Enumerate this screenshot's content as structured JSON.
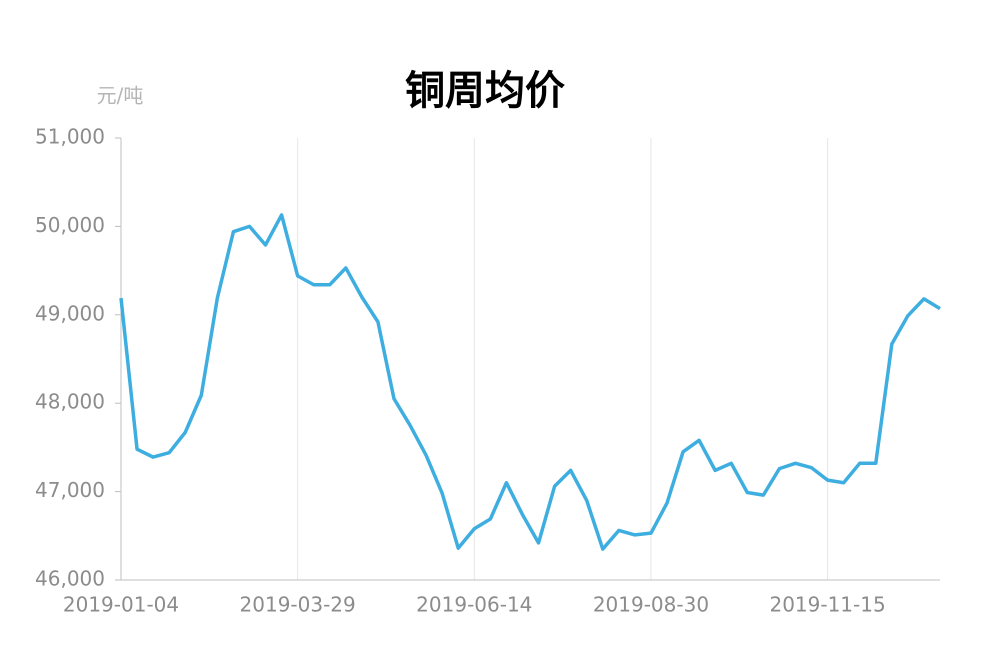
{
  "chart_data": {
    "type": "line",
    "title": "铜周均价",
    "y_unit": "元/吨",
    "categories": [
      "2019-01-04",
      null,
      null,
      null,
      null,
      null,
      null,
      null,
      null,
      null,
      null,
      "2019-03-29",
      null,
      null,
      null,
      null,
      null,
      null,
      null,
      null,
      null,
      null,
      "2019-06-14",
      null,
      null,
      null,
      null,
      null,
      null,
      null,
      null,
      null,
      null,
      "2019-08-30",
      null,
      null,
      null,
      null,
      null,
      null,
      null,
      null,
      null,
      null,
      "2019-11-15",
      null,
      null,
      null,
      null,
      null,
      null,
      null
    ],
    "series": [
      {
        "color": "#3eaee0",
        "values": [
          49190,
          47480,
          47390,
          47440,
          47670,
          48090,
          49190,
          49940,
          50000,
          49790,
          50130,
          49440,
          49340,
          49340,
          49530,
          49200,
          48920,
          48050,
          47750,
          47410,
          46980,
          46360,
          46580,
          46690,
          47100,
          46740,
          46420,
          47060,
          47240,
          46900,
          46350,
          46560,
          46510,
          46530,
          46870,
          47450,
          47580,
          47240,
          47320,
          46990,
          46960,
          47260,
          47320,
          47270,
          47130,
          47100,
          47320,
          47320,
          48670,
          48990,
          49180,
          49070
        ]
      }
    ],
    "ylim": [
      46000,
      51000
    ],
    "yticks": [
      {
        "value": 46000,
        "label": "46,000"
      },
      {
        "value": 47000,
        "label": "47,000"
      },
      {
        "value": 48000,
        "label": "48,000"
      },
      {
        "value": 49000,
        "label": "49,000"
      },
      {
        "value": 50000,
        "label": "50,000"
      },
      {
        "value": 51000,
        "label": "51,000"
      }
    ],
    "grid": true
  }
}
